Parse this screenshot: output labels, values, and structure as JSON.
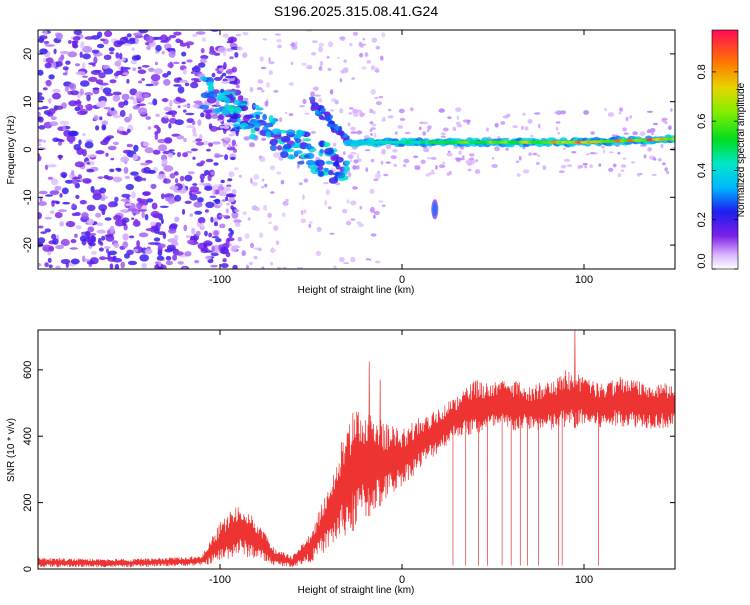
{
  "chart_data": [
    {
      "type": "heatmap",
      "title": "S196.2025.315.08.41.G24",
      "xlabel": "Height of straight line (km)",
      "ylabel": "Frequency (Hz)",
      "xlim": [
        -200,
        150
      ],
      "ylim": [
        -25,
        25
      ],
      "x_ticks": [
        -100,
        0,
        100
      ],
      "y_ticks": [
        20,
        10,
        0,
        -10,
        -20
      ],
      "colorbar": {
        "label": "Normalized spectral amplitude",
        "range": [
          0.0,
          0.97
        ],
        "ticks": [
          0.0,
          0.2,
          0.4,
          0.6,
          0.8
        ]
      },
      "features": [
        {
          "name": "carrier_line",
          "x": [
            -30,
            150
          ],
          "frequency": 1.5,
          "peak_amplitude": 0.95
        },
        {
          "name": "noise_region",
          "x": [
            -200,
            -100
          ],
          "frequency": [
            -25,
            25
          ],
          "amplitude": 0.15
        },
        {
          "name": "descending_branch",
          "x": [
            -110,
            -30
          ],
          "frequency": [
            12,
            -5
          ],
          "amplitude": 0.35
        },
        {
          "name": "ascending_branch",
          "x": [
            -50,
            -30
          ],
          "frequency": [
            10,
            2
          ],
          "amplitude": 0.25
        },
        {
          "name": "isolated_blob",
          "x": 18,
          "frequency": -12.5,
          "amplitude": 0.3
        }
      ]
    },
    {
      "type": "line",
      "xlabel": "Height of straight line (km)",
      "ylabel": "SNR (10 * v/v)",
      "xlim": [
        -200,
        150
      ],
      "ylim": [
        0,
        720
      ],
      "x_ticks": [
        -100,
        0,
        100
      ],
      "y_ticks": [
        0,
        200,
        400,
        600
      ],
      "series": [
        {
          "name": "SNR",
          "color": "#ee3333",
          "envelope_x": [
            -200,
            -150,
            -110,
            -100,
            -90,
            -80,
            -70,
            -60,
            -50,
            -40,
            -30,
            -20,
            -10,
            0,
            10,
            20,
            30,
            40,
            50,
            60,
            70,
            80,
            90,
            100,
            110,
            120,
            130,
            150
          ],
          "envelope_low": [
            5,
            5,
            10,
            20,
            40,
            30,
            10,
            5,
            20,
            60,
            100,
            150,
            200,
            250,
            300,
            350,
            400,
            400,
            420,
            410,
            420,
            410,
            420,
            430,
            420,
            430,
            425,
            420
          ],
          "envelope_high": [
            35,
            30,
            40,
            140,
            200,
            150,
            60,
            40,
            110,
            260,
            450,
            500,
            440,
            420,
            460,
            490,
            520,
            570,
            560,
            580,
            550,
            570,
            600,
            580,
            560,
            580,
            570,
            560
          ],
          "spikes": [
            {
              "x": -18,
              "y": 625
            },
            {
              "x": -12,
              "y": 570
            },
            {
              "x": -27,
              "y": 470
            },
            {
              "x": 95,
              "y": 720
            }
          ],
          "dropouts_x": [
            28,
            35,
            42,
            47,
            55,
            60,
            65,
            69,
            75,
            86,
            88,
            108
          ]
        }
      ]
    }
  ],
  "colors": {
    "series": "#ee3333",
    "noise": "#8b3bf0",
    "axis": "#000000"
  }
}
